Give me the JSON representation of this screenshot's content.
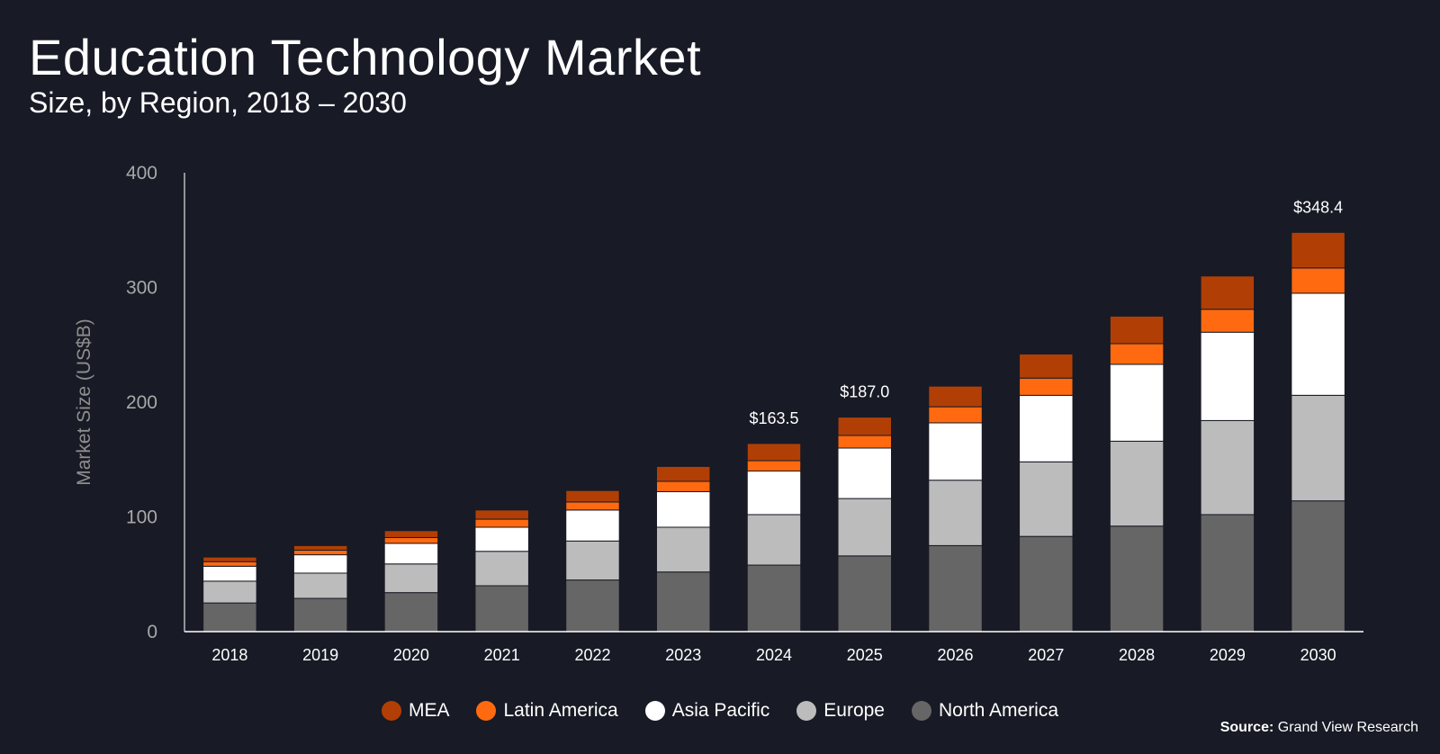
{
  "title": "Education Technology Market",
  "subtitle": "Size, by Region, 2018 – 2030",
  "source": {
    "label": "Source:",
    "text": "Grand View Research"
  },
  "chart_data": {
    "type": "bar",
    "stacked": true,
    "title": "Education Technology Market",
    "subtitle": "Size, by Region, 2018 – 2030",
    "xlabel": "",
    "ylabel": "Market Size (US$B)",
    "ylim": [
      0,
      400
    ],
    "yticks": [
      0,
      100,
      200,
      300,
      400
    ],
    "grid": false,
    "legend_position": "bottom",
    "categories": [
      "2018",
      "2019",
      "2020",
      "2021",
      "2022",
      "2023",
      "2024",
      "2025",
      "2026",
      "2027",
      "2028",
      "2029",
      "2030"
    ],
    "series": [
      {
        "name": "North America",
        "color": "#666666",
        "values": [
          25,
          29,
          34,
          40,
          45,
          52,
          58,
          66,
          75,
          83,
          92,
          102,
          114
        ]
      },
      {
        "name": "Europe",
        "color": "#bcbcbc",
        "values": [
          19,
          22,
          25,
          30,
          34,
          39,
          44,
          50,
          57,
          65,
          74,
          82,
          92
        ]
      },
      {
        "name": "Asia Pacific",
        "color": "#ffffff",
        "values": [
          13,
          16,
          18,
          21,
          27,
          31,
          38,
          44,
          50,
          58,
          67,
          77,
          89
        ]
      },
      {
        "name": "Latin America",
        "color": "#ff6a10",
        "values": [
          4,
          4,
          5,
          7,
          7,
          9,
          9,
          11,
          14,
          15,
          18,
          20,
          22
        ]
      },
      {
        "name": "MEA",
        "color": "#b13f05",
        "values": [
          4,
          4,
          6,
          8,
          10,
          13,
          15,
          16,
          18,
          21,
          24,
          29,
          31
        ]
      }
    ],
    "data_labels": [
      {
        "category": "2024",
        "text": "$163.5"
      },
      {
        "category": "2025",
        "text": "$187.0"
      },
      {
        "category": "2030",
        "text": "$348.4"
      }
    ]
  }
}
